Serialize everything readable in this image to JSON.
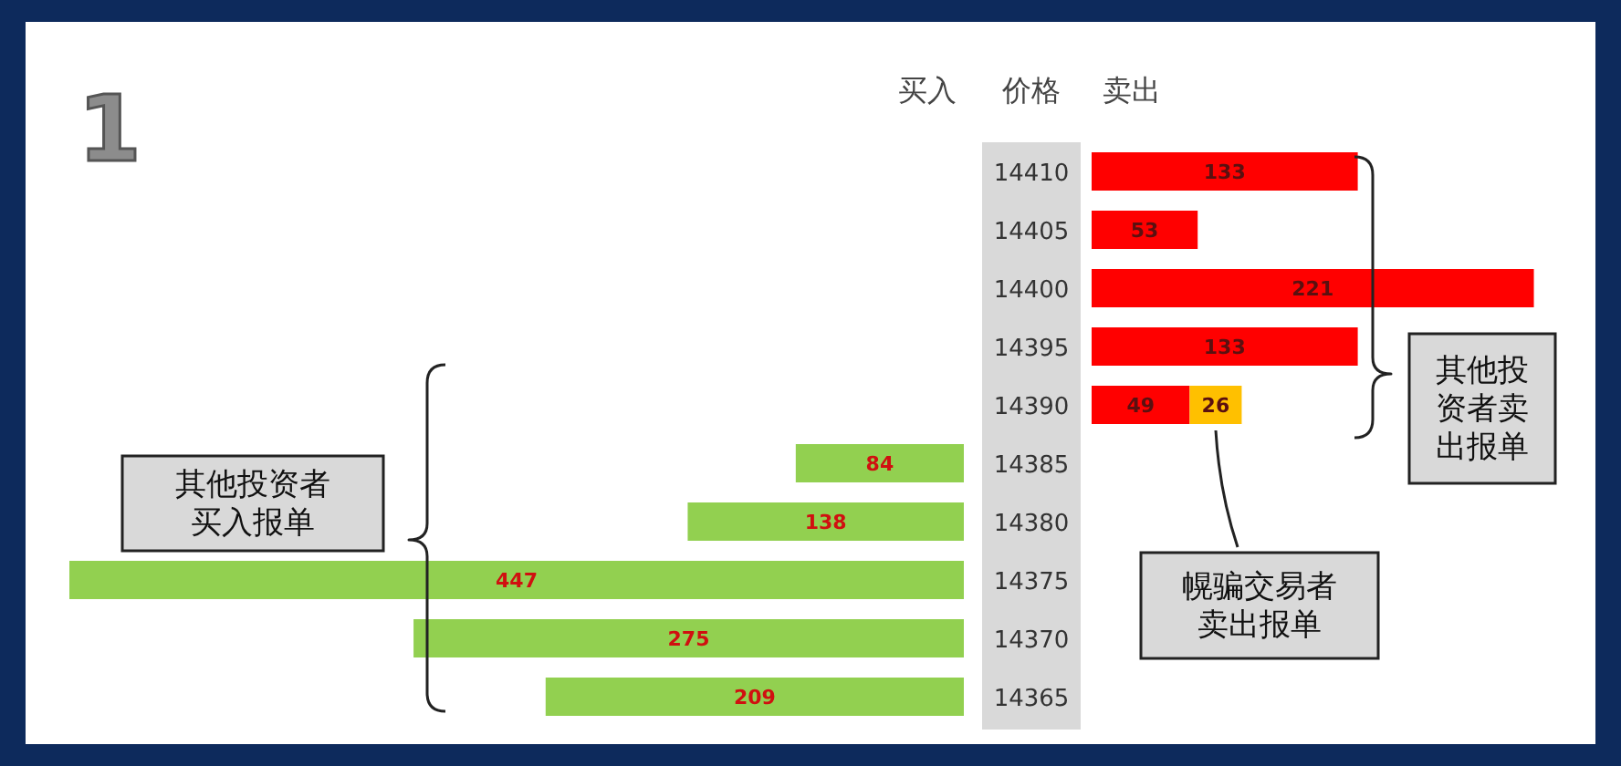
{
  "chart_data": [
    {
      "type": "bar",
      "orientation": "horizontal",
      "title": "1",
      "tick_labels": false,
      "categories": [
        null,
        null,
        null,
        null,
        null,
        "14385",
        "14380",
        "14375",
        "14370",
        "14365"
      ],
      "series": [
        {
          "name": "买入",
          "color": "#92d050",
          "values": [
            null,
            null,
            null,
            null,
            null,
            84,
            138,
            447,
            275,
            209
          ]
        }
      ],
      "data_labels": true,
      "annotations": [
        "其他投资者买入报单"
      ]
    },
    {
      "type": "bar",
      "orientation": "horizontal",
      "stacked": true,
      "ylabel": "价格",
      "categories": [
        "14410",
        "14405",
        "14400",
        "14395",
        "14390",
        "14385",
        "14380",
        "14375",
        "14370",
        "14365"
      ],
      "series": [
        {
          "name": "卖出",
          "color": "#ff0000",
          "values": [
            133,
            53,
            221,
            133,
            49,
            null,
            null,
            null,
            null,
            null
          ]
        },
        {
          "color": "#ffc000",
          "values": [
            null,
            null,
            null,
            null,
            26,
            null,
            null,
            null,
            null,
            null
          ]
        }
      ],
      "data_labels": true,
      "annotations": [
        "其他投资者卖出报单",
        "幌骗交易者卖出报单"
      ]
    }
  ]
}
